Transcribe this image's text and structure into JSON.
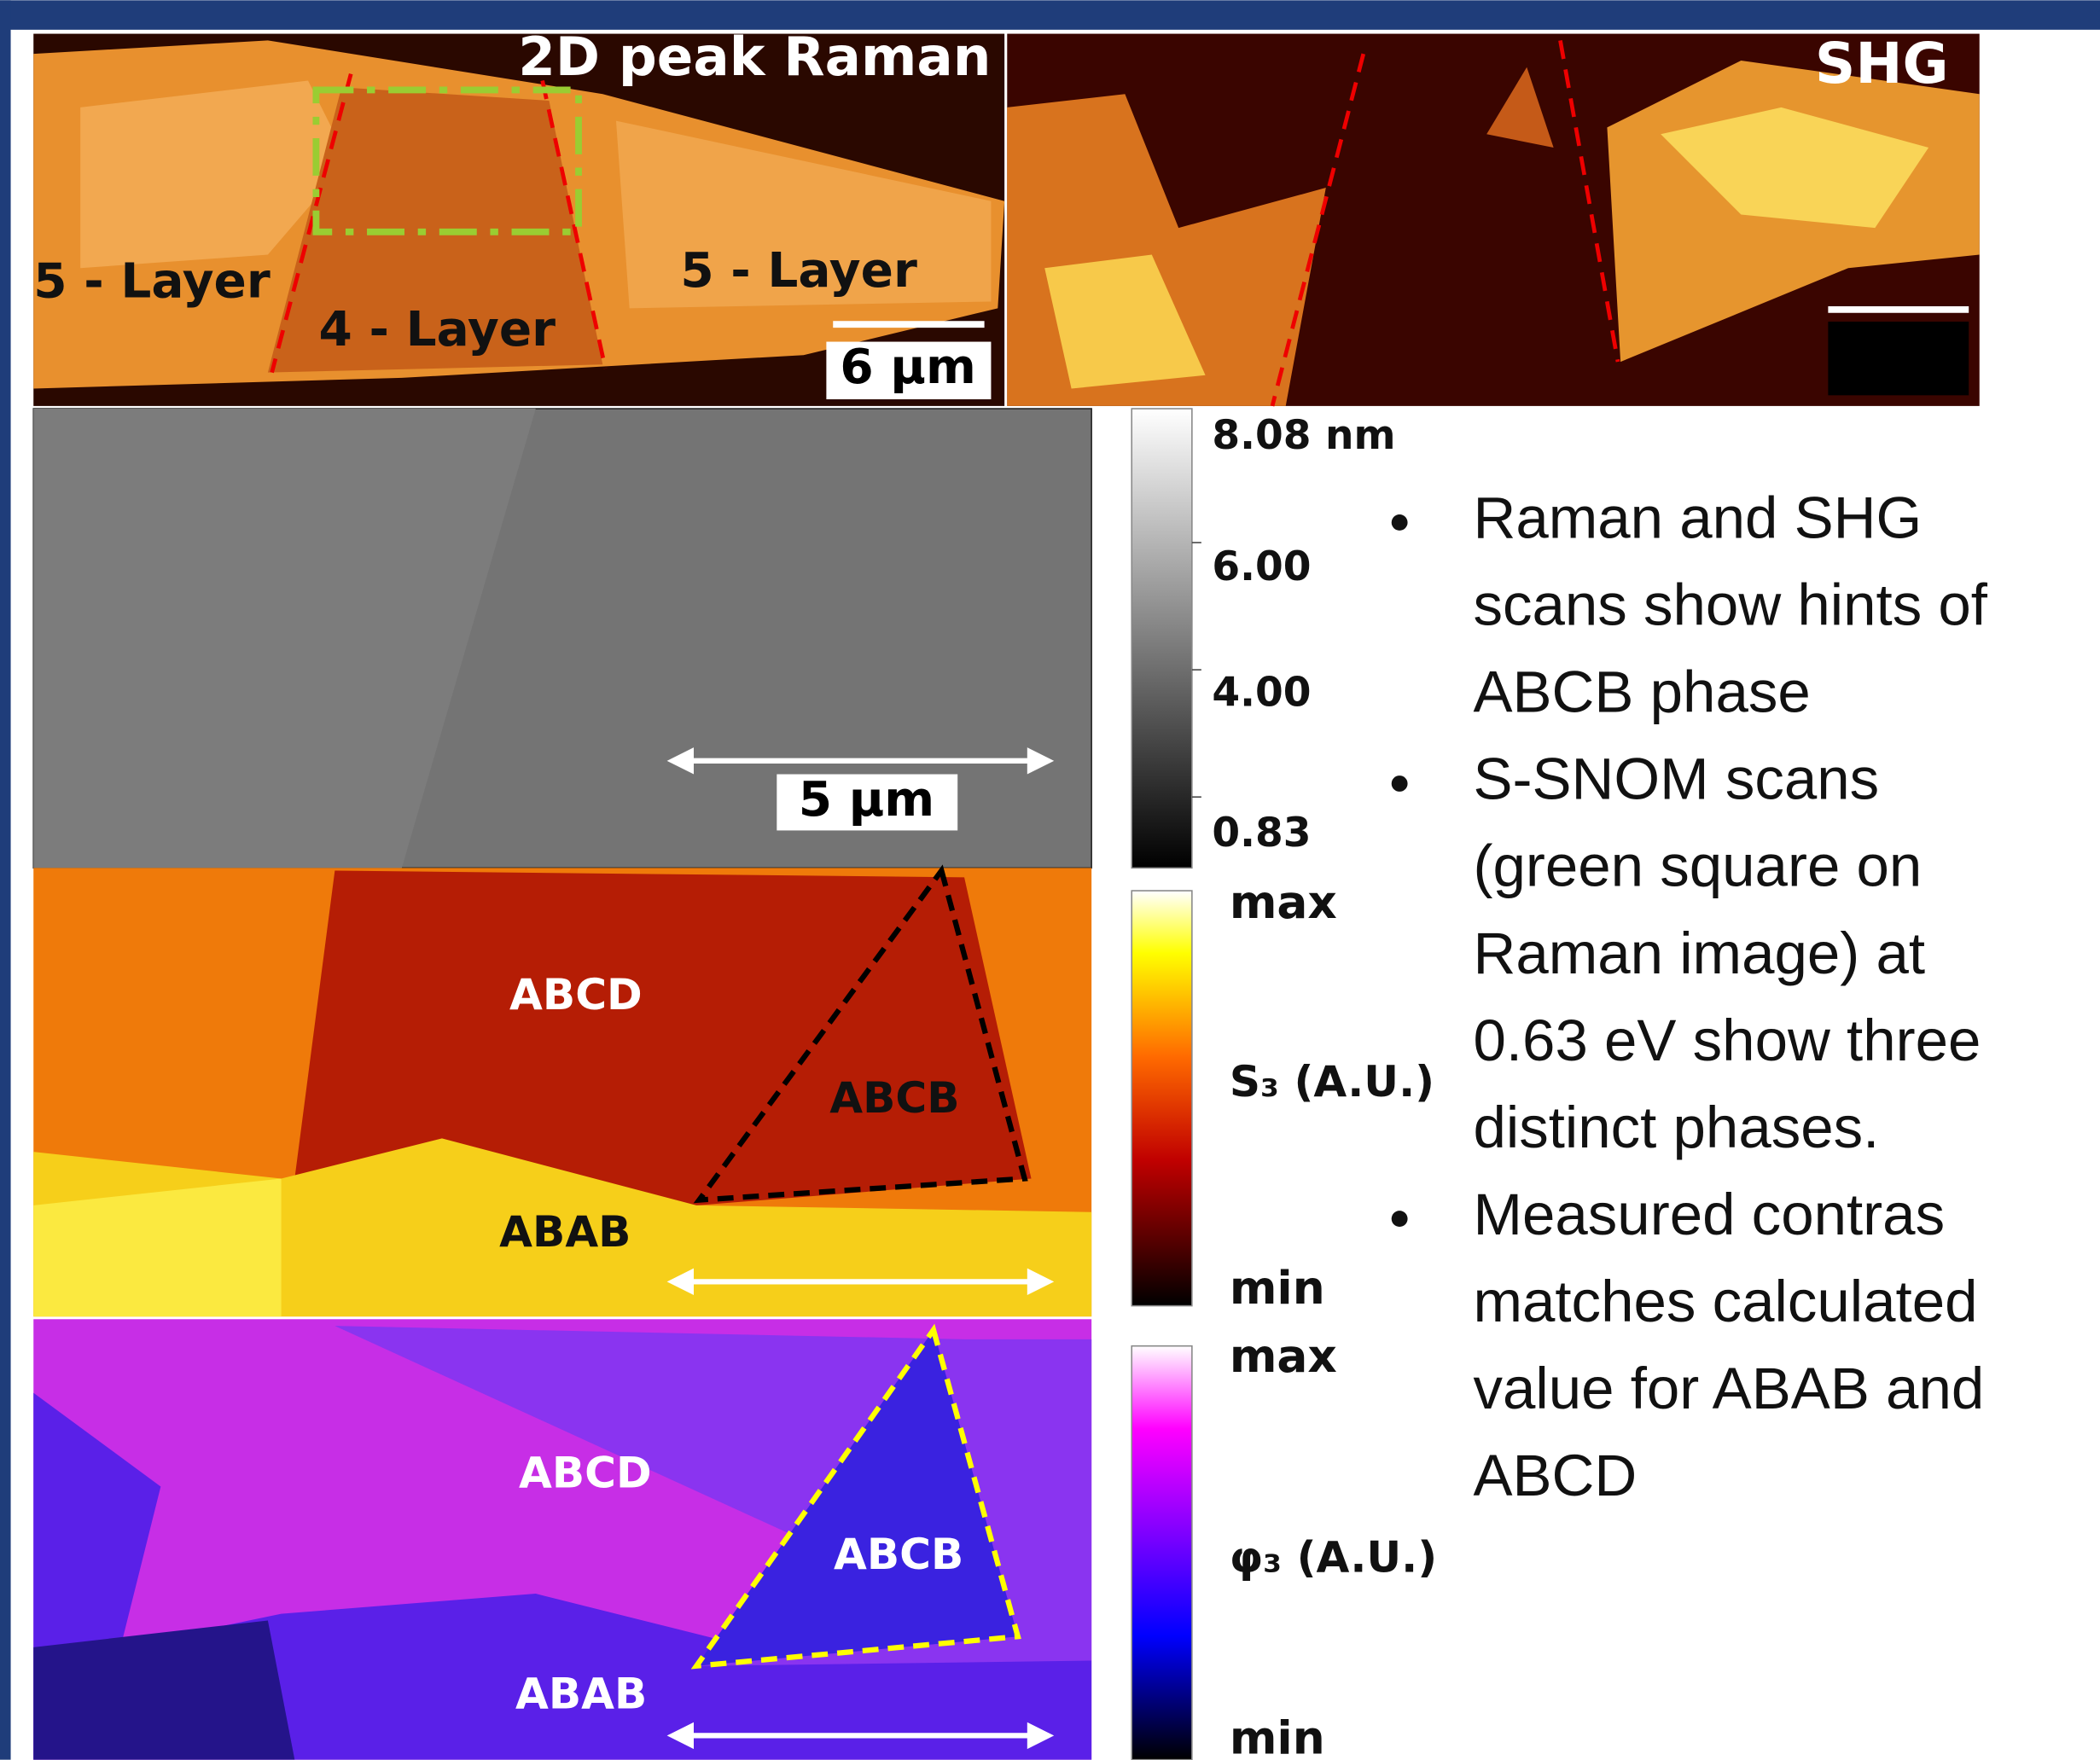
{
  "raman_panel": {
    "title": "2D peak Raman",
    "labels": [
      "5 - Layer",
      "4 - Layer",
      "5 - Layer"
    ],
    "scale_bar": "6 µm"
  },
  "shg_panel": {
    "title": "SHG"
  },
  "afm_panel": {
    "scale_bar": "5 µm",
    "colorbar": {
      "ticks": [
        "8.08 nm",
        "6.00",
        "4.00",
        "0.83"
      ]
    }
  },
  "s3_panel": {
    "labels": [
      "ABCD",
      "ABCB",
      "ABAB"
    ],
    "colorbar": {
      "max": "max",
      "label": "S₃ (A.U.)",
      "min": "min"
    }
  },
  "phi3_panel": {
    "labels": [
      "ABCD",
      "ABCB",
      "ABAB"
    ],
    "colorbar": {
      "max": "max",
      "label": "φ₃ (A.U.)",
      "min": "min"
    }
  },
  "bullets": [
    {
      "lines": [
        "Raman and SHG",
        "scans show hints of",
        "ABCB phase"
      ]
    },
    {
      "lines": [
        "S-SNOM scans",
        "(green square on",
        "Raman image) at",
        "0.63 eV show three",
        "distinct phases."
      ]
    },
    {
      "lines": [
        "Measured contras",
        "matches calculated",
        "value for ABAB and",
        "ABCD"
      ]
    }
  ]
}
